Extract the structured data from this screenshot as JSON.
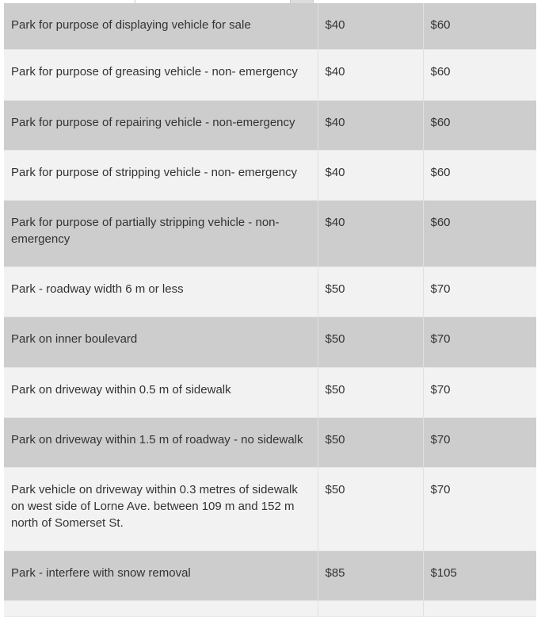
{
  "colors": {
    "row_dark": "#cdcdcd",
    "row_light": "#f2f2f2",
    "text": "#333333"
  },
  "rows": [
    {
      "description": "Park for purpose of displaying vehicle for sale",
      "fine": "$40",
      "late": "$60"
    },
    {
      "description": "Park for purpose of greasing vehicle - non- emergency",
      "fine": "$40",
      "late": "$60"
    },
    {
      "description": "Park for purpose of repairing vehicle - non-emergency",
      "fine": "$40",
      "late": "$60"
    },
    {
      "description": "Park for purpose of stripping vehicle - non- emergency",
      "fine": "$40",
      "late": "$60"
    },
    {
      "description": "Park for purpose of partially stripping vehicle - non-emergency",
      "fine": "$40",
      "late": "$60"
    },
    {
      "description": "Park - roadway width 6 m or less",
      "fine": "$50",
      "late": "$70"
    },
    {
      "description": "Park on inner boulevard",
      "fine": "$50",
      "late": "$70"
    },
    {
      "description": "Park on driveway within 0.5 m of sidewalk",
      "fine": "$50",
      "late": "$70"
    },
    {
      "description": "Park on driveway within 1.5 m of roadway - no sidewalk",
      "fine": "$50",
      "late": "$70"
    },
    {
      "description": "Park vehicle on driveway within 0.3 metres of sidewalk on west side of Lorne Ave. between 109 m and 152 m north of Somerset St.",
      "fine": "$50",
      "late": "$70"
    },
    {
      "description": "Park - interfere with snow removal",
      "fine": "$85",
      "late": "$105"
    },
    {
      "description": "",
      "fine": "",
      "late": ""
    }
  ]
}
